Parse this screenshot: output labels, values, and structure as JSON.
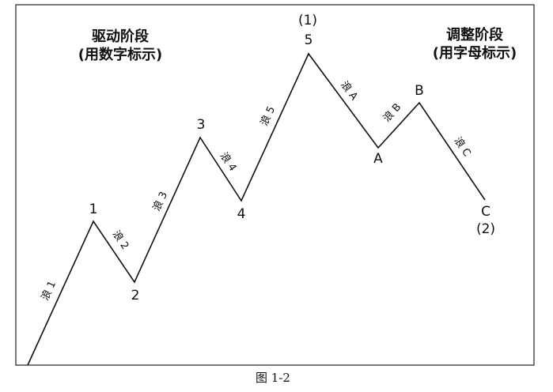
{
  "headings": [
    {
      "title": "驱动阶段",
      "subtitle": "(用数字标示)"
    },
    {
      "title": "调整阶段",
      "subtitle": "(用字母标示)"
    }
  ],
  "points": [
    "1",
    "2",
    "3",
    "4",
    "5",
    "A",
    "B",
    "C"
  ],
  "degree_labels": [
    "(1)",
    "(2)"
  ],
  "waves": [
    "浪 1",
    "浪 2",
    "浪 3",
    "浪 4",
    "浪 5",
    "浪 A",
    "浪 B",
    "浪 C"
  ],
  "caption": "图 1-2"
}
